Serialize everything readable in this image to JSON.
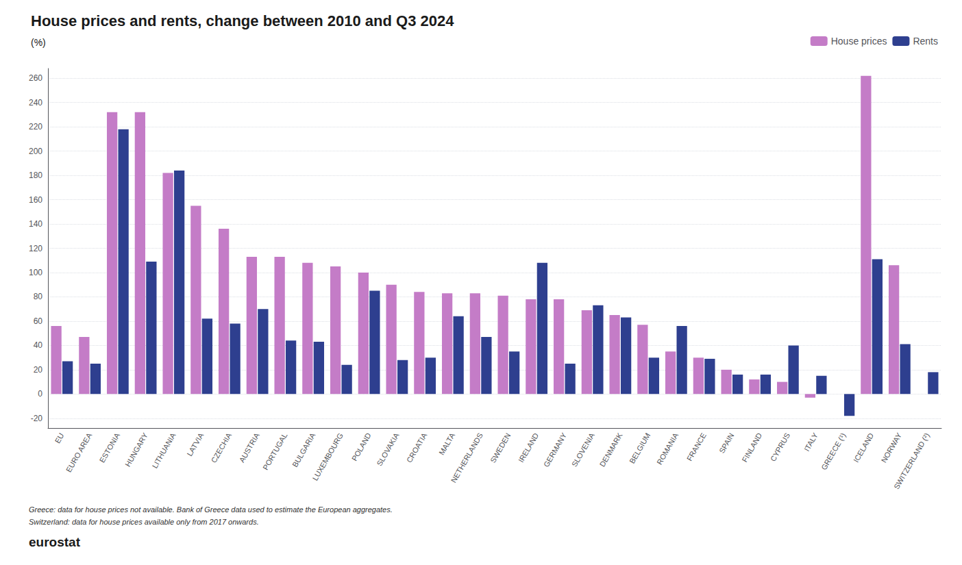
{
  "chart_data": {
    "type": "bar",
    "title": "House prices and rents, change between 2010 and Q3 2024",
    "subtitle": "(%)",
    "categories": [
      "EU",
      "EURO AREA",
      "ESTONIA",
      "HUNGARY",
      "LITHUANIA",
      "LATVIA",
      "CZECHIA",
      "AUSTRIA",
      "PORTUGAL",
      "BULGARIA",
      "LUXEMBOURG",
      "POLAND",
      "SLOVAKIA",
      "CROATIA",
      "MALTA",
      "NETHERLANDS",
      "SWEDEN",
      "IRELAND",
      "GERMANY",
      "SLOVENIA",
      "DENMARK",
      "BELGIUM",
      "ROMANIA",
      "FRANCE",
      "SPAIN",
      "FINLAND",
      "CYPRUS",
      "ITALY",
      "GREECE (¹)",
      "ICELAND",
      "NORWAY",
      "SWITZERLAND (²)"
    ],
    "series": [
      {
        "name": "House prices",
        "color": "#c47cc7",
        "values": [
          56,
          47,
          232,
          232,
          182,
          155,
          136,
          113,
          113,
          108,
          105,
          100,
          90,
          84,
          83,
          83,
          81,
          78,
          78,
          69,
          65,
          57,
          35,
          30,
          20,
          12,
          10,
          -3,
          null,
          262,
          106,
          null
        ]
      },
      {
        "name": "Rents",
        "color": "#2e3f8f",
        "values": [
          27,
          25,
          218,
          109,
          184,
          62,
          58,
          70,
          44,
          43,
          24,
          85,
          28,
          30,
          64,
          47,
          35,
          108,
          25,
          73,
          63,
          30,
          56,
          29,
          16,
          16,
          40,
          15,
          -18,
          111,
          41,
          18
        ]
      }
    ],
    "ylim": [
      -28,
      268
    ],
    "yticks": [
      -20,
      0,
      20,
      40,
      60,
      80,
      100,
      120,
      140,
      160,
      180,
      200,
      220,
      240,
      260
    ],
    "grid": true,
    "legend": "top-right",
    "annotations": [
      "Greece: data for house prices not available. Bank of Greece data used to estimate the European aggregates.",
      "Switzerland: data for house prices available only from 2017 onwards.",
      "eurostat"
    ]
  }
}
